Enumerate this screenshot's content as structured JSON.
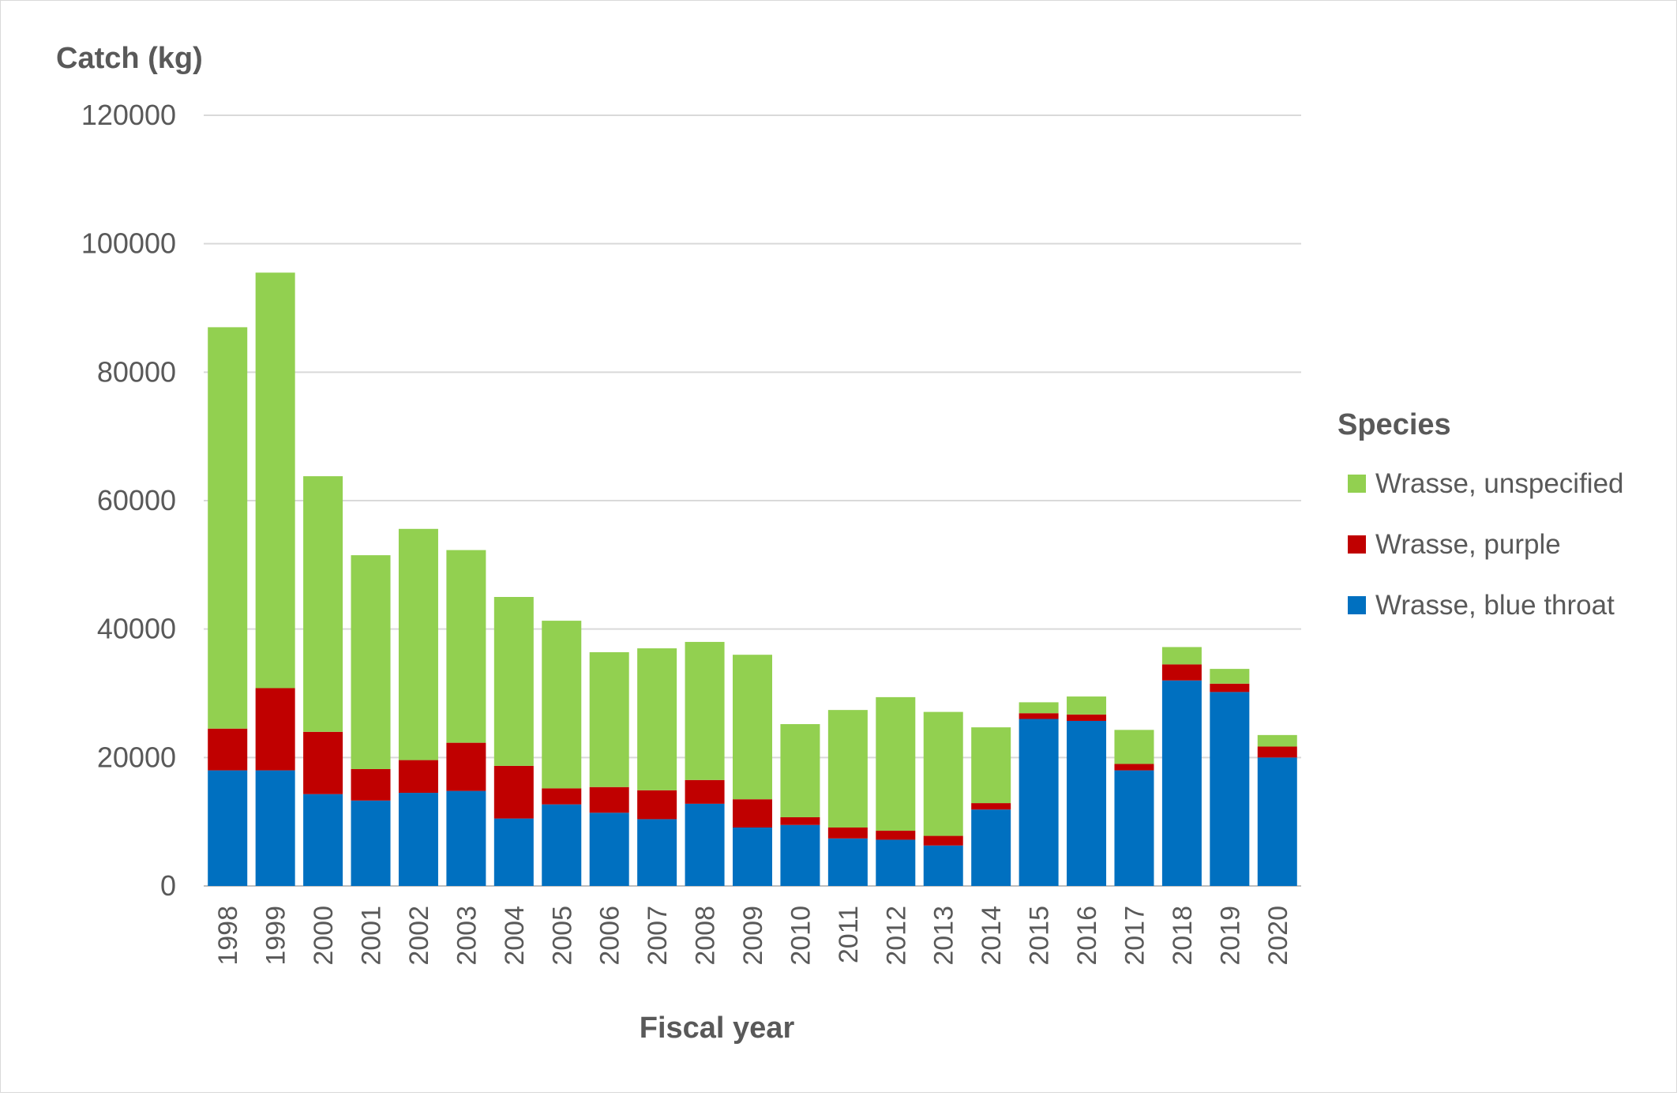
{
  "chart_data": {
    "type": "bar",
    "stacked": true,
    "title": "",
    "ylabel": "Catch (kg)",
    "xlabel": "Fiscal year",
    "ylim": [
      0,
      120000
    ],
    "yticks": [
      0,
      20000,
      40000,
      60000,
      80000,
      100000,
      120000
    ],
    "ytick_labels": [
      "0",
      "20000",
      "40000",
      "60000",
      "80000",
      "100000",
      "120000"
    ],
    "grid": true,
    "legend_title": "Species",
    "legend_position": "right",
    "categories": [
      "1998",
      "1999",
      "2000",
      "2001",
      "2002",
      "2003",
      "2004",
      "2005",
      "2006",
      "2007",
      "2008",
      "2009",
      "2010",
      "2011",
      "2012",
      "2013",
      "2014",
      "2015",
      "2016",
      "2017",
      "2018",
      "2019",
      "2020"
    ],
    "series": [
      {
        "name": "Wrasse, blue throat",
        "color": "#0070c0",
        "values": [
          18000,
          18000,
          14300,
          13300,
          14500,
          14800,
          10500,
          12700,
          11400,
          10400,
          12800,
          9100,
          9500,
          7400,
          7200,
          6300,
          11900,
          26000,
          25700,
          18000,
          32000,
          30200,
          20000
        ]
      },
      {
        "name": "Wrasse, purple",
        "color": "#c00000",
        "values": [
          6500,
          12800,
          9700,
          4900,
          5100,
          7500,
          8200,
          2500,
          4000,
          4500,
          3700,
          4400,
          1200,
          1700,
          1400,
          1500,
          1000,
          900,
          1000,
          1000,
          2500,
          1300,
          1700
        ]
      },
      {
        "name": "Wrasse, unspecified",
        "color": "#92d050",
        "values": [
          62500,
          64700,
          39800,
          33300,
          36000,
          30000,
          26300,
          26100,
          21000,
          22100,
          21500,
          22500,
          14500,
          18300,
          20800,
          19300,
          11800,
          1700,
          2800,
          5300,
          2700,
          2300,
          1800
        ]
      }
    ]
  }
}
